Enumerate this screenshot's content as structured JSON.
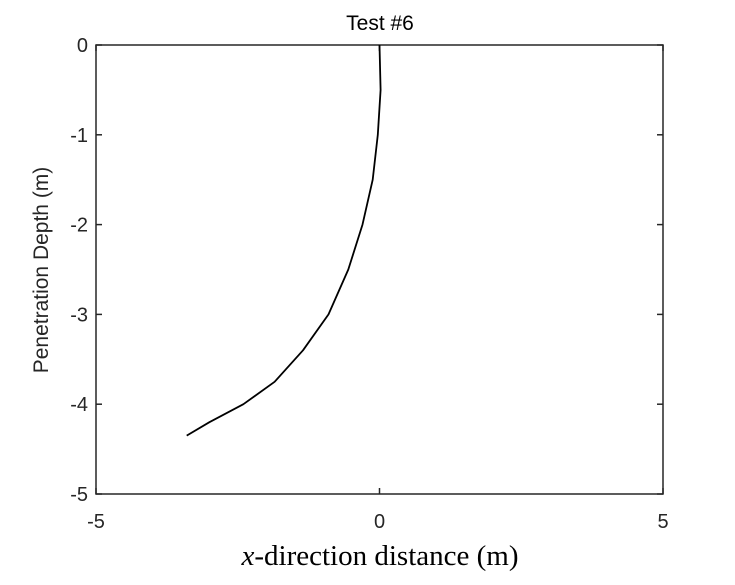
{
  "chart_data": {
    "type": "line",
    "title": "Test #6",
    "xlabel_var": "x",
    "xlabel_rest": "-direction distance (m)",
    "ylabel": "Penetration Depth (m)",
    "xlim": [
      -5,
      5
    ],
    "ylim": [
      -5,
      0
    ],
    "x_ticks": [
      -5,
      0,
      5
    ],
    "y_ticks": [
      0,
      -1,
      -2,
      -3,
      -4,
      -5
    ],
    "x_tick_labels": [
      "-5",
      "0",
      "5"
    ],
    "y_tick_labels": [
      "0",
      "-1",
      "-2",
      "-3",
      "-4",
      "-5"
    ],
    "grid": false,
    "line_color": "#000000",
    "series": [
      {
        "x": [
          0.0,
          0.02,
          -0.03,
          -0.12,
          -0.3,
          -0.55,
          -0.9,
          -1.35,
          -1.85,
          -2.4,
          -3.0,
          -3.4
        ],
        "y": [
          0.0,
          -0.5,
          -1.0,
          -1.5,
          -2.0,
          -2.5,
          -3.0,
          -3.4,
          -3.75,
          -4.0,
          -4.2,
          -4.35
        ]
      }
    ]
  }
}
